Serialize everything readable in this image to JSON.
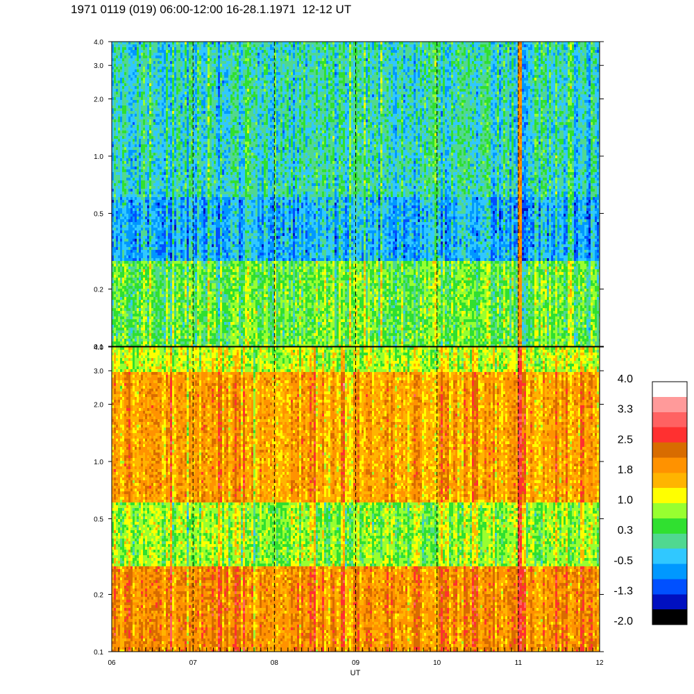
{
  "title": "1971 0119 (019) 06:00-12:00 16-28.1.1971  12-12 UT",
  "chart_data": {
    "type": "heatmap",
    "xlabel": "UT",
    "x_ticks": [
      "06",
      "07",
      "08",
      "09",
      "10",
      "11",
      "12"
    ],
    "xlim": [
      6,
      12
    ],
    "x_dashed_lines": [
      7,
      8,
      9,
      10,
      11
    ],
    "y_scale": "log",
    "ylim": [
      0.1,
      4.0
    ],
    "y_ticks": [
      "0.1",
      "0.2",
      "0.5",
      "1.0",
      "2.0",
      "3.0",
      "4.0"
    ],
    "y_tick_values": [
      0.1,
      0.2,
      0.5,
      1.0,
      2.0,
      3.0,
      4.0
    ],
    "panels": [
      {
        "name": "upper",
        "description_bands": [
          {
            "y_range": [
              0.1,
              0.28
            ],
            "dominant_value": 0.6
          },
          {
            "y_range": [
              0.28,
              0.6
            ],
            "dominant_value": -0.4
          },
          {
            "y_range": [
              0.6,
              4.0
            ],
            "dominant_value": 0.0
          }
        ],
        "notable_features": [
          {
            "x": 11.0,
            "value": 2.0
          }
        ]
      },
      {
        "name": "lower",
        "description_bands": [
          {
            "y_range": [
              0.1,
              0.28
            ],
            "dominant_value": 2.0
          },
          {
            "y_range": [
              0.28,
              0.6
            ],
            "dominant_value": 0.8
          },
          {
            "y_range": [
              0.6,
              3.0
            ],
            "dominant_value": 1.8
          },
          {
            "y_range": [
              3.0,
              4.0
            ],
            "dominant_value": 1.0
          }
        ],
        "notable_features": [
          {
            "x": 11.0,
            "value": 2.8
          }
        ]
      }
    ],
    "colorbar": {
      "labels": [
        "4.0",
        "3.3",
        "2.5",
        "1.8",
        "1.0",
        "0.3",
        "-0.5",
        "-1.3",
        "-2.0"
      ],
      "colors": [
        "#ffffff",
        "#ff9a9a",
        "#ff6262",
        "#ff3030",
        "#d86c00",
        "#ff9200",
        "#ffb400",
        "#ffff00",
        "#98ff30",
        "#30e030",
        "#50d890",
        "#30c8ff",
        "#0098ff",
        "#0050ff",
        "#0010c0",
        "#000000"
      ]
    }
  }
}
